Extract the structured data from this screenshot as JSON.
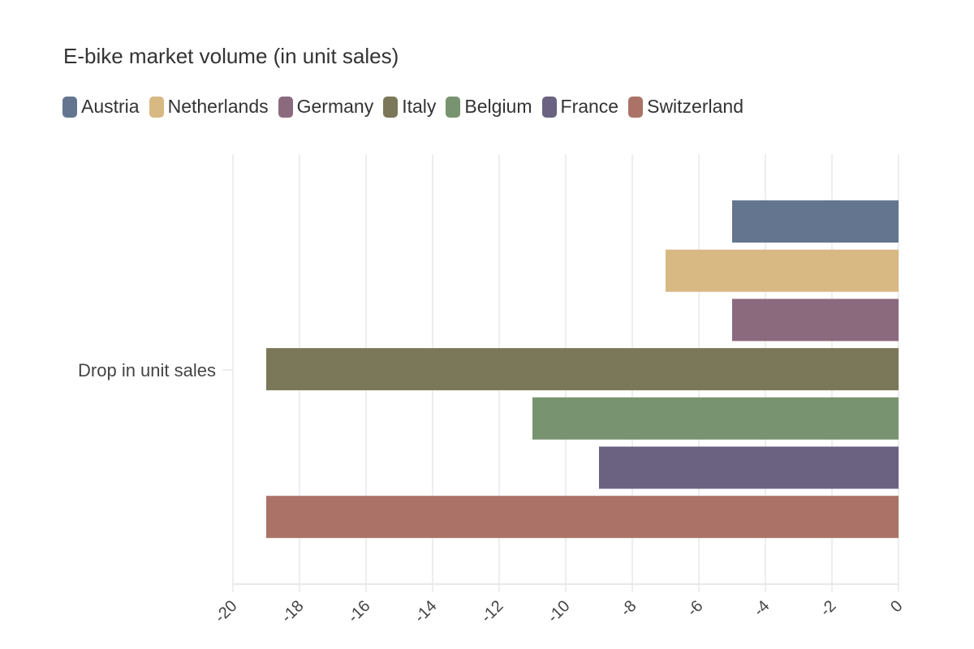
{
  "chart_data": {
    "type": "bar",
    "orientation": "horizontal",
    "title": "E-bike market volume (in unit sales)",
    "categories": [
      "Drop in unit sales"
    ],
    "series": [
      {
        "name": "Austria",
        "values": [
          -5
        ],
        "color": "#64768f"
      },
      {
        "name": "Netherlands",
        "values": [
          -7
        ],
        "color": "#d8b883"
      },
      {
        "name": "Germany",
        "values": [
          -5
        ],
        "color": "#8b6a7d"
      },
      {
        "name": "Italy",
        "values": [
          -19
        ],
        "color": "#7a7858"
      },
      {
        "name": "Belgium",
        "values": [
          -11
        ],
        "color": "#789370"
      },
      {
        "name": "France",
        "values": [
          -9
        ],
        "color": "#6b6180"
      },
      {
        "name": "Switzerland",
        "values": [
          -19
        ],
        "color": "#ab7367"
      }
    ],
    "xlim": [
      -20,
      0
    ],
    "xticks": [
      "-20",
      "-18",
      "-16",
      "-14",
      "-12",
      "-10",
      "-8",
      "-6",
      "-4",
      "-2",
      "0"
    ],
    "grid": true,
    "legend": "top-left"
  }
}
